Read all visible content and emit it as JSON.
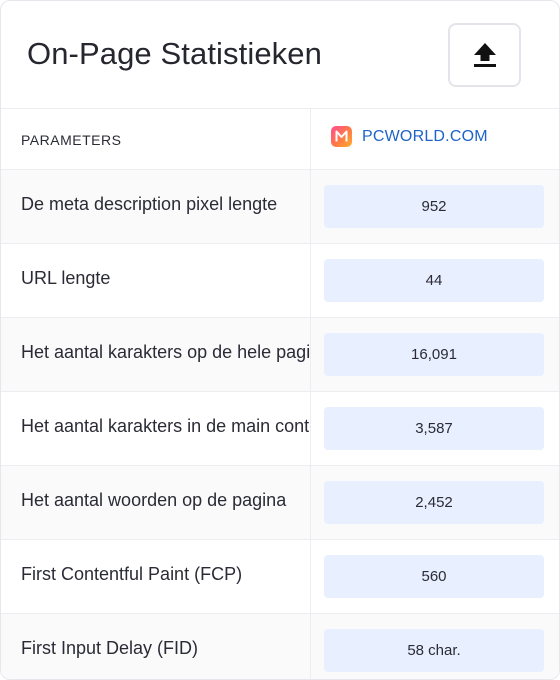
{
  "header": {
    "title": "On-Page Statistieken",
    "upload_icon": "upload-arrow-icon"
  },
  "table": {
    "col_params_label": "PARAMETERS",
    "site": {
      "name": "PCWORLD.COM",
      "logo_icon": "site-favicon",
      "logo_letter": "M",
      "color": "#1e63c7"
    },
    "rows": [
      {
        "label": "De meta description pixel lengte",
        "value": "952"
      },
      {
        "label": "URL lengte",
        "value": "44"
      },
      {
        "label": "Het aantal karakters op de hele pagina",
        "value": "16,091"
      },
      {
        "label": "Het aantal karakters in de main content",
        "value": "3,587"
      },
      {
        "label": "Het aantal woorden op de pagina",
        "value": "2,452"
      },
      {
        "label": "First Contentful Paint (FCP)",
        "value": "560"
      },
      {
        "label": "First Input Delay (FID)",
        "value": "58 char."
      }
    ]
  },
  "colors": {
    "value_cell_bg": "#e8efff",
    "alt_row_bg": "#fafafb",
    "border": "#ececf1"
  }
}
